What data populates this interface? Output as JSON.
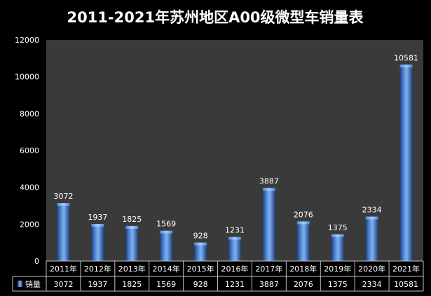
{
  "colors": {
    "background": "#000000",
    "plot_area": "#3a3a3a",
    "bar_light": "#7eb0f0",
    "bar_mid": "#3f75c8",
    "bar_dark": "#1c3f78",
    "text": "#ffffff",
    "grid": "#4a4a4a",
    "table_border": "#bfbfbf"
  },
  "chart_data": {
    "type": "bar",
    "title": "2011-2021年苏州地区A00级微型车销量表",
    "xlabel": "",
    "ylabel": "",
    "categories": [
      "2011年",
      "2012年",
      "2013年",
      "2014年",
      "2015年",
      "2016年",
      "2017年",
      "2018年",
      "2019年",
      "2020年",
      "2021年"
    ],
    "series": [
      {
        "name": "销量",
        "values": [
          3072,
          1937,
          1825,
          1569,
          928,
          1231,
          3887,
          2076,
          1375,
          2334,
          10581
        ]
      }
    ],
    "ylim": [
      0,
      12000
    ],
    "yticks": [
      0,
      2000,
      4000,
      6000,
      8000,
      10000,
      12000
    ],
    "data_labels": true,
    "data_table": true,
    "grid": false
  }
}
